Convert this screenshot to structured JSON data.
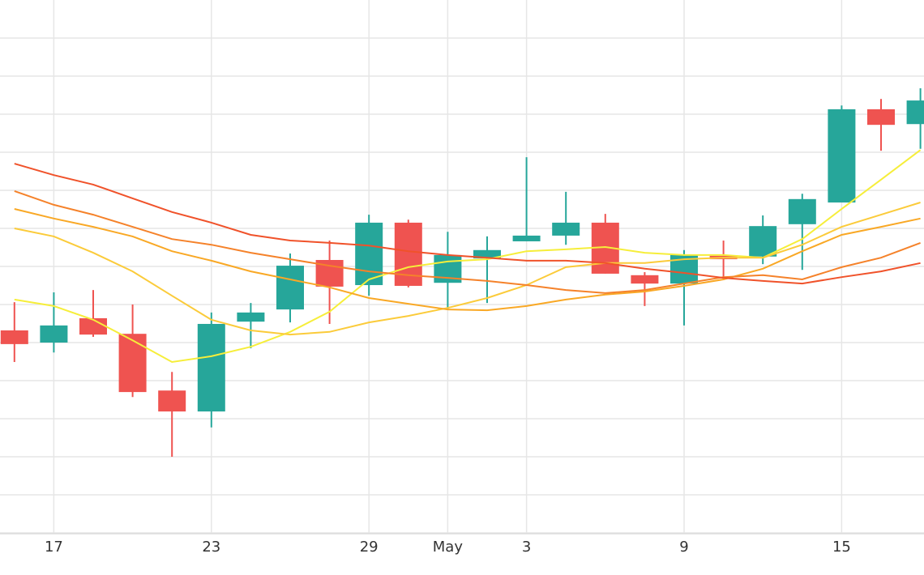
{
  "chart_data": {
    "type": "candlestick",
    "categories": [
      null,
      "17",
      null,
      null,
      null,
      "23",
      null,
      null,
      null,
      "29",
      null,
      "May",
      null,
      "3",
      null,
      null,
      null,
      "9",
      null,
      null,
      null,
      "15",
      null,
      null
    ],
    "open": [
      5.32,
      5.0,
      5.64,
      5.23,
      3.74,
      3.19,
      5.55,
      5.87,
      7.17,
      6.51,
      8.15,
      6.57,
      7.21,
      7.66,
      7.81,
      8.15,
      6.77,
      6.55,
      7.28,
      7.26,
      8.11,
      8.68,
      11.13,
      10.74
    ],
    "high": [
      6.06,
      6.32,
      6.38,
      6.0,
      4.23,
      5.79,
      6.04,
      7.34,
      7.68,
      8.36,
      8.23,
      7.91,
      7.79,
      9.87,
      8.96,
      8.38,
      6.85,
      7.43,
      7.68,
      8.34,
      8.91,
      11.23,
      11.4,
      11.68
    ],
    "low": [
      4.49,
      4.74,
      5.15,
      3.57,
      2.0,
      2.77,
      4.85,
      5.53,
      5.49,
      6.23,
      6.45,
      5.87,
      6.04,
      7.66,
      7.57,
      6.81,
      5.96,
      5.45,
      6.72,
      7.06,
      6.91,
      8.68,
      10.04,
      10.09
    ],
    "close": [
      4.96,
      5.45,
      5.21,
      3.7,
      3.19,
      5.49,
      5.79,
      7.02,
      6.47,
      8.15,
      6.49,
      7.3,
      7.43,
      7.81,
      8.15,
      6.81,
      6.55,
      7.3,
      7.19,
      8.06,
      8.77,
      11.13,
      10.72,
      11.36
    ],
    "up_color": "#26a69a",
    "down_color": "#ef5350",
    "series": [
      {
        "color": "#f6ee3a",
        "values": [
          6.13,
          5.96,
          5.6,
          5.06,
          4.49,
          4.64,
          4.89,
          5.28,
          5.81,
          6.66,
          6.98,
          7.13,
          7.19,
          7.4,
          7.45,
          7.51,
          7.36,
          7.3,
          7.3,
          7.23,
          7.72,
          8.51,
          9.28,
          10.06
        ]
      },
      {
        "color": "#fbcb3a",
        "values": [
          8.0,
          7.79,
          7.36,
          6.87,
          6.23,
          5.6,
          5.32,
          5.21,
          5.28,
          5.53,
          5.7,
          5.91,
          6.17,
          6.51,
          6.98,
          7.09,
          7.09,
          7.19,
          7.23,
          7.23,
          7.57,
          8.04,
          8.36,
          8.68
        ]
      },
      {
        "color": "#f9a825",
        "values": [
          8.51,
          8.26,
          8.04,
          7.79,
          7.4,
          7.15,
          6.87,
          6.66,
          6.45,
          6.17,
          6.02,
          5.87,
          5.85,
          5.96,
          6.13,
          6.26,
          6.34,
          6.49,
          6.66,
          6.94,
          7.4,
          7.83,
          8.04,
          8.26
        ]
      },
      {
        "color": "#f5822a",
        "values": [
          8.98,
          8.62,
          8.36,
          8.04,
          7.72,
          7.57,
          7.36,
          7.19,
          7.02,
          6.87,
          6.77,
          6.7,
          6.62,
          6.51,
          6.38,
          6.3,
          6.38,
          6.55,
          6.72,
          6.77,
          6.66,
          6.98,
          7.23,
          7.62
        ]
      },
      {
        "color": "#f0522a",
        "values": [
          9.7,
          9.4,
          9.15,
          8.79,
          8.43,
          8.15,
          7.83,
          7.68,
          7.62,
          7.55,
          7.4,
          7.3,
          7.23,
          7.15,
          7.15,
          7.09,
          6.94,
          6.83,
          6.7,
          6.62,
          6.55,
          6.72,
          6.87,
          7.09
        ]
      }
    ],
    "ylim": [
      0,
      14
    ],
    "yticks": [
      0,
      1,
      2,
      3,
      4,
      5,
      6,
      7,
      8,
      9,
      10,
      11,
      12,
      13
    ],
    "ytick_labels_shown": false,
    "grid": true
  }
}
